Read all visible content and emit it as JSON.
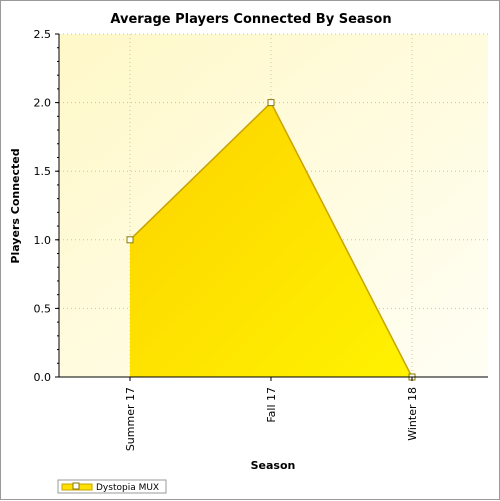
{
  "chart_data": {
    "type": "area",
    "title": "Average Players Connected By Season",
    "xlabel": "Season",
    "ylabel": "Players Connected",
    "categories": [
      "Summer 17",
      "Fall 17",
      "Winter 18"
    ],
    "series": [
      {
        "name": "Dystopia MUX",
        "values": [
          1.0,
          2.0,
          0.0
        ],
        "color": "#ffe000",
        "line_color": "#c8a400"
      }
    ],
    "ylim": [
      0,
      2.5
    ],
    "yticks": [
      "0.0",
      "0.5",
      "1.0",
      "1.5",
      "2.0",
      "2.5"
    ],
    "grid": true,
    "legend_position": "bottom-left",
    "plot_background": "#fffbe0"
  }
}
